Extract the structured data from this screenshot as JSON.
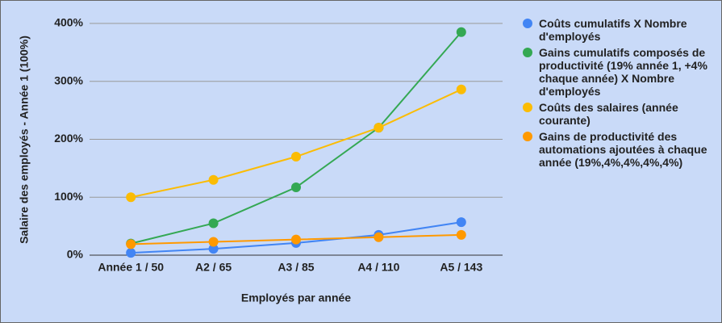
{
  "chart_data": {
    "type": "line",
    "x_label": "Employés par année",
    "y_label": "Salaire des employés - Année 1 (100%)",
    "categories": [
      "Année 1 / 50",
      "A2 / 65",
      "A3 / 85",
      "A4 / 110",
      "A5 / 143"
    ],
    "series": [
      {
        "name": "Coûts cumulatifs X Nombre d'employés",
        "color": "#4285f4",
        "values": [
          4,
          11,
          21,
          35,
          57
        ]
      },
      {
        "name": "Gains cumulatifs composés de productivité (19% année 1, +4% chaque année) X Nombre d'employés",
        "color": "#34a853",
        "values": [
          20,
          55,
          117,
          220,
          385
        ]
      },
      {
        "name": "Coûts des salaires (année courante)",
        "color": "#fbbc04",
        "values": [
          100,
          130,
          170,
          220,
          286
        ]
      },
      {
        "name": "Gains de productivité des automations ajoutées à chaque année (19%,4%,4%,4%,4%)",
        "color": "#ff9900",
        "values": [
          19,
          23,
          27,
          31,
          35
        ]
      }
    ],
    "ylim": [
      0,
      400
    ],
    "yticks": [
      {
        "value": 0,
        "label": "0%"
      },
      {
        "value": 100,
        "label": "100%"
      },
      {
        "value": 200,
        "label": "200%"
      },
      {
        "value": 300,
        "label": "300%"
      },
      {
        "value": 400,
        "label": "400%"
      }
    ],
    "grid": true,
    "legend": "right"
  }
}
